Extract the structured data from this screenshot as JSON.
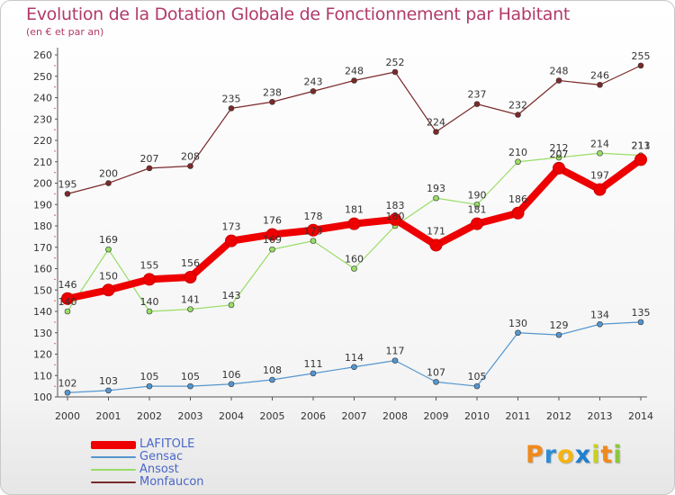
{
  "title": "Evolution de la Dotation Globale de Fonctionnement par Habitant",
  "subtitle": "(en € et par an)",
  "brand": {
    "letters": [
      "P",
      "r",
      "o",
      "x",
      "i",
      "t",
      "i"
    ],
    "colors": [
      "#f08a1c",
      "#2c8dd6",
      "#f5b40f",
      "#1e7fd0",
      "#c7d21f",
      "#f08a1c",
      "#8cc63f"
    ]
  },
  "chart_data": {
    "type": "line",
    "title": "Evolution de la Dotation Globale de Fonctionnement par Habitant",
    "subtitle": "(en € et par an)",
    "xlabel": "",
    "ylabel": "",
    "x": [
      "2000",
      "2001",
      "2002",
      "2003",
      "2004",
      "2005",
      "2006",
      "2007",
      "2008",
      "2009",
      "2010",
      "2011",
      "2012",
      "2013",
      "2014"
    ],
    "ylim": [
      100,
      260
    ],
    "yticks": [
      "100",
      "110",
      "120",
      "130",
      "140",
      "150",
      "160",
      "170",
      "180",
      "190",
      "200",
      "210",
      "220",
      "230",
      "240",
      "250",
      "260"
    ],
    "grid": false,
    "legend_position": "bottom-left",
    "series": [
      {
        "name": "LAFITOLE",
        "color": "#ee0000",
        "values": [
          146,
          150,
          155,
          156,
          173,
          176,
          178,
          181,
          183,
          171,
          181,
          186,
          207,
          197,
          211
        ],
        "labels": [
          "146",
          "150",
          "155",
          "156",
          "173",
          "176",
          "178",
          "181",
          "183",
          "171",
          "181",
          "186",
          "207",
          "197",
          "211"
        ]
      },
      {
        "name": "Gensac",
        "color": "#5596cf",
        "values": [
          102,
          103,
          105,
          105,
          106,
          108,
          111,
          114,
          117,
          107,
          105,
          130,
          129,
          134,
          135
        ],
        "labels": [
          "102",
          "103",
          "105",
          "105",
          "106",
          "108",
          "111",
          "114",
          "117",
          "107",
          "105",
          "130",
          "129",
          "134",
          "135"
        ]
      },
      {
        "name": "Ansost",
        "color": "#99dd66",
        "values": [
          140,
          169,
          140,
          141,
          143,
          169,
          173,
          160,
          180,
          193,
          190,
          210,
          212,
          214,
          213
        ],
        "labels": [
          "140",
          "169",
          "140",
          "141",
          "143",
          "169",
          "173",
          "160",
          "180",
          "193",
          "190",
          "210",
          "212",
          "214",
          "213"
        ]
      },
      {
        "name": "Monfaucon",
        "color": "#7a2a2a",
        "values": [
          195,
          200,
          207,
          208,
          235,
          238,
          243,
          248,
          252,
          224,
          237,
          232,
          248,
          246,
          255
        ],
        "labels": [
          "195",
          "200",
          "207",
          "208",
          "235",
          "238",
          "243",
          "248",
          "252",
          "224",
          "237",
          "232",
          "248",
          "246",
          "255"
        ]
      }
    ]
  }
}
